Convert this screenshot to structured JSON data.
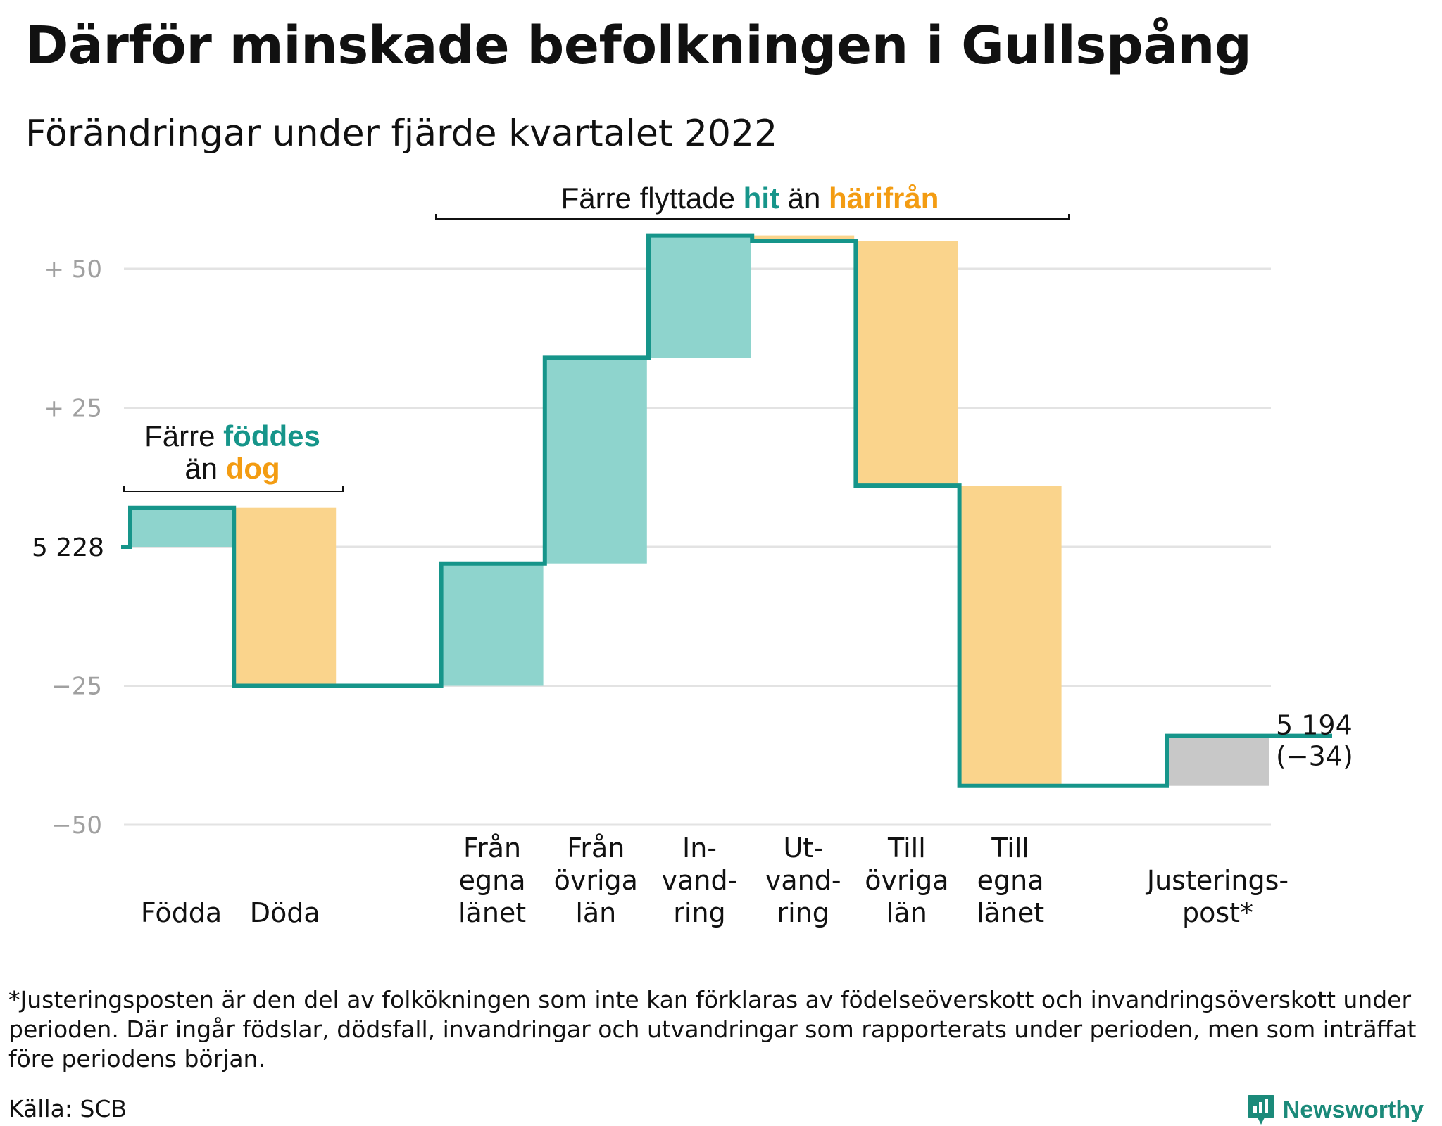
{
  "title": "Därför minskade befolkningen i Gullspång",
  "subtitle": "Förändringar under fjärde kvartalet 2022",
  "colors": {
    "teal_line": "#16958a",
    "teal_fill": "#8ed4cd",
    "orange_fill": "#fad48c",
    "adjust_fill": "#c8c8c8",
    "grid": "#e3e3e3",
    "teal_text": "#16958a",
    "orange_text": "#f39c12"
  },
  "chart_data": {
    "type": "waterfall",
    "start_value": 5228,
    "start_label": "5 228",
    "end_label": "5 194",
    "end_change_label": "(−34)",
    "y_ticks": [
      {
        "value": 50,
        "label": "+ 50"
      },
      {
        "value": 25,
        "label": "+ 25"
      },
      {
        "value": -25,
        "label": "−25"
      },
      {
        "value": -50,
        "label": "−50"
      }
    ],
    "ylim": [
      -50,
      56
    ],
    "steps": [
      {
        "id": "fodda",
        "label_lines": [
          "Födda"
        ],
        "change": 7,
        "kind": "in"
      },
      {
        "id": "doda",
        "label_lines": [
          "Döda"
        ],
        "change": -32,
        "kind": "out"
      },
      {
        "id": "fran-egna-lanet",
        "label_lines": [
          "Från",
          "egna",
          "länet"
        ],
        "change": 22,
        "kind": "in"
      },
      {
        "id": "fran-ovriga-lan",
        "label_lines": [
          "Från",
          "övriga",
          "län"
        ],
        "change": 37,
        "kind": "in"
      },
      {
        "id": "invandring",
        "label_lines": [
          "In-",
          "vand-",
          "ring"
        ],
        "change": 22,
        "kind": "in"
      },
      {
        "id": "utvandring",
        "label_lines": [
          "Ut-",
          "vand-",
          "ring"
        ],
        "change": -1,
        "kind": "out"
      },
      {
        "id": "till-ovriga-lan",
        "label_lines": [
          "Till",
          "övriga",
          "län"
        ],
        "change": -44,
        "kind": "out"
      },
      {
        "id": "till-egna-lanet",
        "label_lines": [
          "Till",
          "egna",
          "länet"
        ],
        "change": -54,
        "kind": "out"
      },
      {
        "id": "justeringspost",
        "label_lines": [
          "Justerings-",
          "post*"
        ],
        "change": 9,
        "kind": "adjust"
      }
    ]
  },
  "annotations": {
    "births": {
      "line1": "Färre",
      "line1_teal": "föddes",
      "line2": "än",
      "line2_orange": "dog"
    },
    "moves": {
      "prefix": "Färre flyttade",
      "teal": "hit",
      "middle": "än",
      "orange": "härifrån"
    }
  },
  "footnote": "*Justeringsposten är den del av folkökningen som inte kan förklaras av födelseöverskott och invandringsöverskott under perioden. Där ingår födslar, dödsfall, invandringar och utvandringar som rapporterats under perioden, men som inträffat före periodens början.",
  "source": "Källa: SCB",
  "brand": {
    "name": "Newsworthy",
    "icon": "newsworthy-logo-icon"
  }
}
